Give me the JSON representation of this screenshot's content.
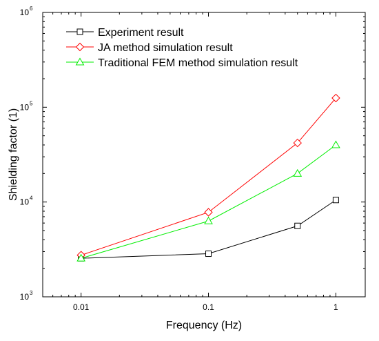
{
  "chart_data": {
    "type": "line",
    "xlabel": "Frequency (Hz)",
    "ylabel": "Shielding factor (1)",
    "x_scale": "log",
    "y_scale": "log",
    "xlim": [
      0.005,
      1.7
    ],
    "ylim": [
      1000,
      1000000
    ],
    "x_ticks": [
      {
        "value": 0.01,
        "label": "0.01"
      },
      {
        "value": 0.1,
        "label": "0.1"
      },
      {
        "value": 1,
        "label": "1"
      }
    ],
    "y_ticks": [
      {
        "value": 1000,
        "base": "10",
        "exp": "3"
      },
      {
        "value": 10000,
        "base": "10",
        "exp": "4"
      },
      {
        "value": 100000,
        "base": "10",
        "exp": "5"
      },
      {
        "value": 1000000,
        "base": "10",
        "exp": "6"
      }
    ],
    "x": [
      0.01,
      0.1,
      0.5,
      1
    ],
    "series": [
      {
        "name": "Experiment result",
        "color": "#000000",
        "marker": "square",
        "values": [
          2550,
          2850,
          5600,
          10500
        ]
      },
      {
        "name": "JA method simulation result",
        "color": "#ff0000",
        "marker": "diamond",
        "values": [
          2750,
          7800,
          42000,
          125000
        ]
      },
      {
        "name": "Traditional FEM method simulation result",
        "color": "#00ee00",
        "marker": "triangle",
        "values": [
          2550,
          6300,
          20000,
          40000
        ]
      }
    ],
    "legend_position": "top-left",
    "grid": false
  }
}
